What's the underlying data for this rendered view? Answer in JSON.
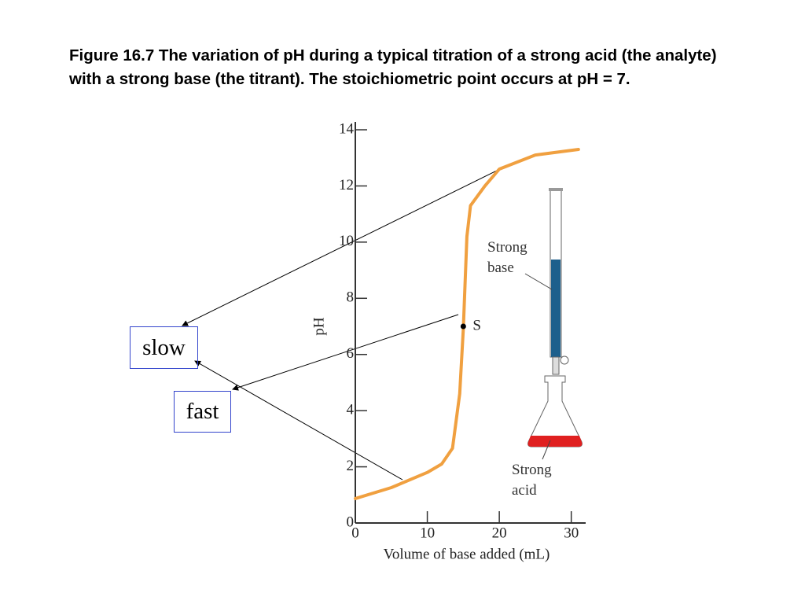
{
  "chart_data": {
    "type": "line",
    "title": "Figure 16.7  The variation of pH during a typical titration of a strong acid (the analyte) with a strong base (the titrant). The stoichiometric point occurs at pH = 7.",
    "x_label": "Volume of base added (mL)",
    "y_label": "pH",
    "x": [
      0,
      5,
      10,
      12,
      13.5,
      14.5,
      15,
      15.5,
      16,
      18,
      20,
      25,
      31
    ],
    "series": [
      {
        "color": "#f0a040",
        "values": [
          0.87,
          1.26,
          1.8,
          2.1,
          2.66,
          4.6,
          6.9,
          10.2,
          11.3,
          12.0,
          12.6,
          13.1,
          13.3
        ]
      }
    ],
    "xlim": [
      0,
      32
    ],
    "ylim": [
      0,
      14
    ],
    "xticks": [
      0,
      10,
      20,
      30
    ],
    "yticks": [
      0,
      2,
      4,
      6,
      8,
      10,
      12,
      14
    ],
    "point": {
      "label": "S",
      "x": 15,
      "y": 7
    },
    "annotations": {
      "base": "Strong base",
      "acid": "Strong acid",
      "slow": "slow",
      "fast": "fast"
    }
  }
}
